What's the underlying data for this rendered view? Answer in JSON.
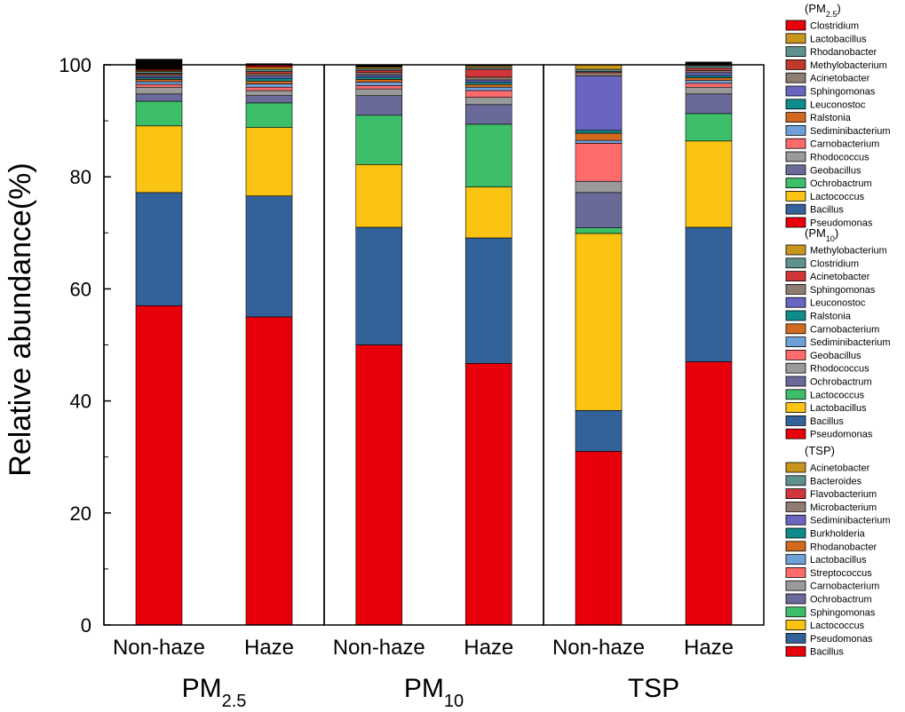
{
  "chart_data": {
    "type": "stacked-bar",
    "ylabel": "Relative abundance(%)",
    "ylim": [
      0,
      100
    ],
    "yticks": [
      0,
      20,
      40,
      60,
      80,
      100
    ],
    "groups": [
      {
        "label": "PM",
        "label_sub": "2.5",
        "legend_title": "(PM",
        "legend_title_sub": "2.5",
        "legend_title_end": ")",
        "legend": [
          {
            "name": "Clostridium",
            "color": "#e8000b"
          },
          {
            "name": "Lactobacillus",
            "color": "#c8961c"
          },
          {
            "name": "Rhodanobacter",
            "color": "#5f9190"
          },
          {
            "name": "Methylobacterium",
            "color": "#c0392b"
          },
          {
            "name": "Acinetobacter",
            "color": "#8e7d70"
          },
          {
            "name": "Sphingomonas",
            "color": "#6a65c0"
          },
          {
            "name": "Leuconostoc",
            "color": "#0e8c8c"
          },
          {
            "name": "Ralstonia",
            "color": "#d2691e"
          },
          {
            "name": "Sediminibacterium",
            "color": "#6fa0d8"
          },
          {
            "name": "Carnobacterium",
            "color": "#ff6b6b"
          },
          {
            "name": "Rhodococcus",
            "color": "#9a9a9a"
          },
          {
            "name": "Geobacillus",
            "color": "#6a6a9a"
          },
          {
            "name": "Ochrobactrum",
            "color": "#3dbf6a"
          },
          {
            "name": "Lactococcus",
            "color": "#fbc312"
          },
          {
            "name": "Bacillus",
            "color": "#33629a"
          },
          {
            "name": "Pseudomonas",
            "color": "#e8000b"
          }
        ],
        "bars": [
          {
            "category": "Non-haze",
            "segments": [
              {
                "name": "Pseudomonas",
                "value": 57.0
              },
              {
                "name": "Bacillus",
                "value": 20.2
              },
              {
                "name": "Lactococcus",
                "value": 11.9
              },
              {
                "name": "Ochrobactrum",
                "value": 4.4
              },
              {
                "name": "Geobacillus",
                "value": 1.3
              },
              {
                "name": "Rhodococcus",
                "value": 1.2
              },
              {
                "name": "Carnobacterium",
                "value": 0.5
              },
              {
                "name": "Sediminibacterium",
                "value": 0.5
              },
              {
                "name": "Ralstonia",
                "value": 0.4
              },
              {
                "name": "Leuconostoc",
                "value": 0.3
              },
              {
                "name": "Sphingomonas",
                "value": 0.3
              },
              {
                "name": "Acinetobacter",
                "value": 0.3
              },
              {
                "name": "Methylobacterium",
                "value": 0.2
              },
              {
                "name": "Rhodanobacter",
                "value": 0.3
              },
              {
                "name": "Lactobacillus",
                "value": 0.2
              },
              {
                "name": "Clostridium",
                "value": 0.2
              },
              {
                "name": "Others",
                "value": 1.8
              }
            ]
          },
          {
            "category": "Haze",
            "segments": [
              {
                "name": "Pseudomonas",
                "value": 55.0
              },
              {
                "name": "Bacillus",
                "value": 21.6
              },
              {
                "name": "Lactococcus",
                "value": 12.2
              },
              {
                "name": "Ochrobactrum",
                "value": 4.4
              },
              {
                "name": "Geobacillus",
                "value": 1.3
              },
              {
                "name": "Rhodococcus",
                "value": 0.9
              },
              {
                "name": "Carnobacterium",
                "value": 0.6
              },
              {
                "name": "Sediminibacterium",
                "value": 0.6
              },
              {
                "name": "Ralstonia",
                "value": 0.5
              },
              {
                "name": "Leuconostoc",
                "value": 0.5
              },
              {
                "name": "Sphingomonas",
                "value": 0.4
              },
              {
                "name": "Acinetobacter",
                "value": 0.4
              },
              {
                "name": "Methylobacterium",
                "value": 0.4
              },
              {
                "name": "Rhodanobacter",
                "value": 0.4
              },
              {
                "name": "Lactobacillus",
                "value": 0.4
              },
              {
                "name": "Clostridium",
                "value": 0.3
              },
              {
                "name": "Others",
                "value": 0.3
              }
            ]
          }
        ]
      },
      {
        "label": "PM",
        "label_sub": "10",
        "legend_title": "(PM",
        "legend_title_sub": "10",
        "legend_title_end": ")",
        "legend": [
          {
            "name": "Methylobacterium",
            "color": "#c8961c"
          },
          {
            "name": "Clostridium",
            "color": "#5f9190"
          },
          {
            "name": "Acinetobacter",
            "color": "#d0363a"
          },
          {
            "name": "Sphingomonas",
            "color": "#8e7d70"
          },
          {
            "name": "Leuconostoc",
            "color": "#6a65c0"
          },
          {
            "name": "Ralstonia",
            "color": "#0e8c8c"
          },
          {
            "name": "Carnobacterium",
            "color": "#d2691e"
          },
          {
            "name": "Sediminibacterium",
            "color": "#6fa0d8"
          },
          {
            "name": "Geobacillus",
            "color": "#ff6b6b"
          },
          {
            "name": "Rhodococcus",
            "color": "#9a9a9a"
          },
          {
            "name": "Ochrobactrum",
            "color": "#6a6a9a"
          },
          {
            "name": "Lactococcus",
            "color": "#3dbf6a"
          },
          {
            "name": "Lactobacillus",
            "color": "#fbc312"
          },
          {
            "name": "Bacillus",
            "color": "#33629a"
          },
          {
            "name": "Pseudomonas",
            "color": "#e8000b"
          }
        ],
        "bars": [
          {
            "category": "Non-haze",
            "segments": [
              {
                "name": "Pseudomonas",
                "value": 50.0
              },
              {
                "name": "Bacillus",
                "value": 21.0
              },
              {
                "name": "Lactobacillus",
                "value": 11.2
              },
              {
                "name": "Lactococcus",
                "value": 8.8
              },
              {
                "name": "Ochrobactrum",
                "value": 3.5
              },
              {
                "name": "Rhodococcus",
                "value": 1.2
              },
              {
                "name": "Geobacillus",
                "value": 0.6
              },
              {
                "name": "Sediminibacterium",
                "value": 0.6
              },
              {
                "name": "Carnobacterium",
                "value": 0.5
              },
              {
                "name": "Ralstonia",
                "value": 0.4
              },
              {
                "name": "Leuconostoc",
                "value": 0.4
              },
              {
                "name": "Sphingomonas",
                "value": 0.4
              },
              {
                "name": "Acinetobacter",
                "value": 0.4
              },
              {
                "name": "Clostridium",
                "value": 0.3
              },
              {
                "name": "Methylobacterium",
                "value": 0.3
              },
              {
                "name": "Others",
                "value": 0.4
              }
            ]
          },
          {
            "category": "Haze",
            "segments": [
              {
                "name": "Pseudomonas",
                "value": 46.7
              },
              {
                "name": "Bacillus",
                "value": 22.4
              },
              {
                "name": "Lactobacillus",
                "value": 9.1
              },
              {
                "name": "Lactococcus",
                "value": 11.2
              },
              {
                "name": "Ochrobactrum",
                "value": 3.5
              },
              {
                "name": "Rhodococcus",
                "value": 1.3
              },
              {
                "name": "Geobacillus",
                "value": 1.2
              },
              {
                "name": "Sediminibacterium",
                "value": 0.6
              },
              {
                "name": "Carnobacterium",
                "value": 0.5
              },
              {
                "name": "Ralstonia",
                "value": 0.4
              },
              {
                "name": "Leuconostoc",
                "value": 0.4
              },
              {
                "name": "Sphingomonas",
                "value": 0.5
              },
              {
                "name": "Acinetobacter",
                "value": 1.4
              },
              {
                "name": "Clostridium",
                "value": 0.3
              },
              {
                "name": "Methylobacterium",
                "value": 0.3
              },
              {
                "name": "Others",
                "value": 0.2
              }
            ]
          }
        ]
      },
      {
        "label": "TSP",
        "label_sub": "",
        "legend_title": "(TSP)",
        "legend_title_sub": "",
        "legend_title_end": "",
        "legend": [
          {
            "name": "Acinetobacter",
            "color": "#c8961c"
          },
          {
            "name": "Bacteroides",
            "color": "#5f9190"
          },
          {
            "name": "Flavobacterium",
            "color": "#d0363a"
          },
          {
            "name": "Microbacterium",
            "color": "#8e7d70"
          },
          {
            "name": "Sediminibacterium",
            "color": "#6a65c0"
          },
          {
            "name": "Burkholderia",
            "color": "#0e8c8c"
          },
          {
            "name": "Rhodanobacter",
            "color": "#d2691e"
          },
          {
            "name": "Lactobacillus",
            "color": "#6fa0d8"
          },
          {
            "name": "Streptococcus",
            "color": "#ff6b6b"
          },
          {
            "name": "Carnobacterium",
            "color": "#9a9a9a"
          },
          {
            "name": "Ochrobactrum",
            "color": "#6a6a9a"
          },
          {
            "name": "Sphingomonas",
            "color": "#3dbf6a"
          },
          {
            "name": "Lactococcus",
            "color": "#fbc312"
          },
          {
            "name": "Pseudomonas",
            "color": "#33629a"
          },
          {
            "name": "Bacillus",
            "color": "#e8000b"
          }
        ],
        "bars": [
          {
            "category": "Non-haze",
            "segments": [
              {
                "name": "Bacillus",
                "value": 31.0
              },
              {
                "name": "Pseudomonas",
                "value": 7.3
              },
              {
                "name": "Lactococcus",
                "value": 31.6
              },
              {
                "name": "Sphingomonas",
                "value": 1.0
              },
              {
                "name": "Ochrobactrum",
                "value": 6.3
              },
              {
                "name": "Carnobacterium",
                "value": 2.0
              },
              {
                "name": "Streptococcus",
                "value": 6.8
              },
              {
                "name": "Lactobacillus",
                "value": 0.5
              },
              {
                "name": "Rhodanobacter",
                "value": 1.3
              },
              {
                "name": "Burkholderia",
                "value": 0.5
              },
              {
                "name": "Sediminibacterium",
                "value": 9.7
              },
              {
                "name": "Microbacterium",
                "value": 0.6
              },
              {
                "name": "Flavobacterium",
                "value": 0.2
              },
              {
                "name": "Bacteroides",
                "value": 0.4
              },
              {
                "name": "Acinetobacter",
                "value": 0.8
              }
            ]
          },
          {
            "category": "Haze",
            "segments": [
              {
                "name": "Bacillus",
                "value": 47.0
              },
              {
                "name": "Pseudomonas",
                "value": 24.0
              },
              {
                "name": "Lactococcus",
                "value": 15.4
              },
              {
                "name": "Sphingomonas",
                "value": 4.9
              },
              {
                "name": "Ochrobactrum",
                "value": 3.5
              },
              {
                "name": "Carnobacterium",
                "value": 1.2
              },
              {
                "name": "Streptococcus",
                "value": 0.7
              },
              {
                "name": "Lactobacillus",
                "value": 0.5
              },
              {
                "name": "Rhodanobacter",
                "value": 0.5
              },
              {
                "name": "Burkholderia",
                "value": 0.4
              },
              {
                "name": "Sediminibacterium",
                "value": 0.5
              },
              {
                "name": "Microbacterium",
                "value": 0.4
              },
              {
                "name": "Flavobacterium",
                "value": 0.4
              },
              {
                "name": "Bacteroides",
                "value": 0.4
              },
              {
                "name": "Acinetobacter",
                "value": 0.3
              },
              {
                "name": "Others",
                "value": 0.4
              }
            ]
          }
        ]
      }
    ],
    "others_color": "#000000"
  }
}
